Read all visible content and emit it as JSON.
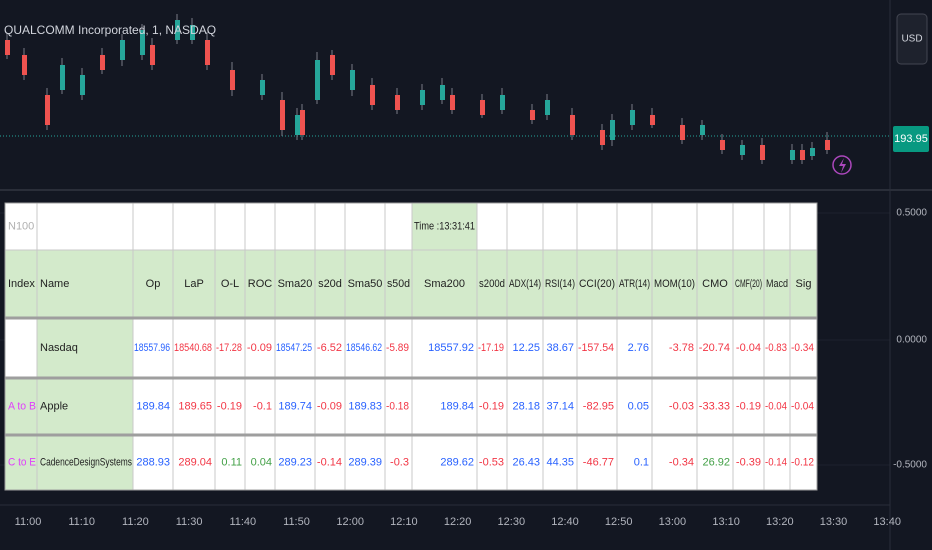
{
  "header": {
    "title": "QUALCOMM Incorporated, 1, NASDAQ",
    "currency": "USD",
    "last_price": "193.95"
  },
  "price_axis": [
    "0.5000",
    "0.0000",
    "-0.5000"
  ],
  "time_axis": [
    "11:00",
    "11:10",
    "11:20",
    "11:30",
    "11:40",
    "11:50",
    "12:00",
    "12:10",
    "12:20",
    "12:30",
    "12:40",
    "12:50",
    "13:00",
    "13:10",
    "13:20",
    "13:30",
    "13:40"
  ],
  "table": {
    "corner": "N100",
    "time": "Time :13:31:41",
    "columns": [
      "Index",
      "Name",
      "Op",
      "LaP",
      "O-L",
      "ROC",
      "Sma20",
      "s20d",
      "Sma50",
      "s50d",
      "Sma200",
      "s200d",
      "ADX(14)",
      "RSI(14)",
      "CCI(20)",
      "ATR(14)",
      "MOM(10)",
      "CMO",
      "CMF(20)",
      "Macd",
      "Sig"
    ],
    "rows": [
      {
        "index": null,
        "name": "Nasdaq",
        "cells": [
          "18557.96",
          "18540.68",
          "-17.28",
          "-0.09",
          "18547.25",
          "-6.52",
          "18546.62",
          "-5.89",
          "18557.92",
          "-17.19",
          "12.25",
          "38.67",
          "-157.54",
          "2.76",
          "-3.78",
          "-20.74",
          "-0.04",
          "-0.83",
          "-0.34"
        ],
        "colors": [
          "#2962ff",
          "#f23645",
          "#f23645",
          "#f23645",
          "#2962ff",
          "#f23645",
          "#2962ff",
          "#f23645",
          "#2962ff",
          "#f23645",
          "#2962ff",
          "#2962ff",
          "#f23645",
          "#2962ff",
          "#f23645",
          "#f23645",
          "#f23645",
          "#f23645",
          "#f23645"
        ]
      },
      {
        "index": "A to B",
        "name": "Apple",
        "cells": [
          "189.84",
          "189.65",
          "-0.19",
          "-0.1",
          "189.74",
          "-0.09",
          "189.83",
          "-0.18",
          "189.84",
          "-0.19",
          "28.18",
          "37.14",
          "-82.95",
          "0.05",
          "-0.03",
          "-33.33",
          "-0.19",
          "-0.04",
          "-0.04"
        ],
        "colors": [
          "#2962ff",
          "#f23645",
          "#f23645",
          "#f23645",
          "#2962ff",
          "#f23645",
          "#2962ff",
          "#f23645",
          "#2962ff",
          "#f23645",
          "#2962ff",
          "#2962ff",
          "#f23645",
          "#2962ff",
          "#f23645",
          "#f23645",
          "#f23645",
          "#f23645",
          "#f23645"
        ]
      },
      {
        "index": "C to E",
        "name": "CadenceDesignSystems",
        "cells": [
          "288.93",
          "289.04",
          "0.11",
          "0.04",
          "289.23",
          "-0.14",
          "289.39",
          "-0.3",
          "289.62",
          "-0.53",
          "26.43",
          "44.35",
          "-46.77",
          "0.1",
          "-0.34",
          "26.92",
          "-0.39",
          "-0.14",
          "-0.12"
        ],
        "colors": [
          "#2962ff",
          "#f23645",
          "#43a047",
          "#43a047",
          "#2962ff",
          "#f23645",
          "#2962ff",
          "#f23645",
          "#2962ff",
          "#f23645",
          "#2962ff",
          "#2962ff",
          "#f23645",
          "#2962ff",
          "#f23645",
          "#43a047",
          "#f23645",
          "#f23645",
          "#f23645"
        ]
      }
    ]
  }
}
